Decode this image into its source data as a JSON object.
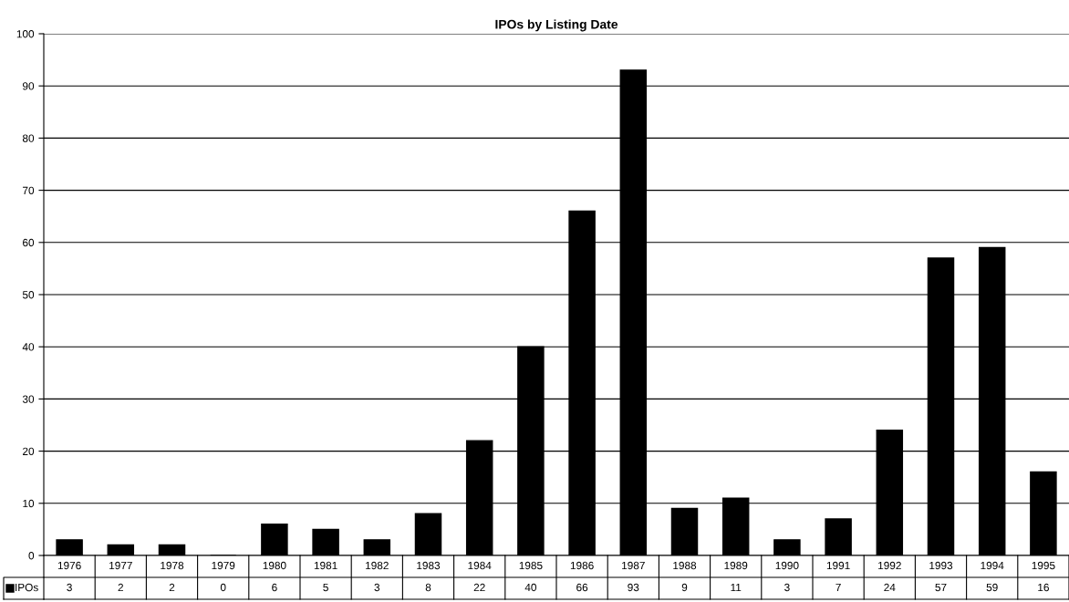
{
  "chart_data": {
    "type": "bar",
    "title": "IPOs by Listing Date",
    "categories": [
      "1976",
      "1977",
      "1978",
      "1979",
      "1980",
      "1981",
      "1982",
      "1983",
      "1984",
      "1985",
      "1986",
      "1987",
      "1988",
      "1989",
      "1990",
      "1991",
      "1992",
      "1993",
      "1994",
      "1995"
    ],
    "series": [
      {
        "name": "IPOs",
        "color": "#000000",
        "values": [
          3,
          2,
          2,
          0,
          6,
          5,
          3,
          8,
          22,
          40,
          66,
          93,
          9,
          11,
          3,
          7,
          24,
          57,
          59,
          16
        ]
      }
    ],
    "ylim": [
      0,
      100
    ],
    "yticks": [
      0,
      10,
      20,
      30,
      40,
      50,
      60,
      70,
      80,
      90,
      100
    ],
    "grid": "y",
    "data_labels": true
  }
}
